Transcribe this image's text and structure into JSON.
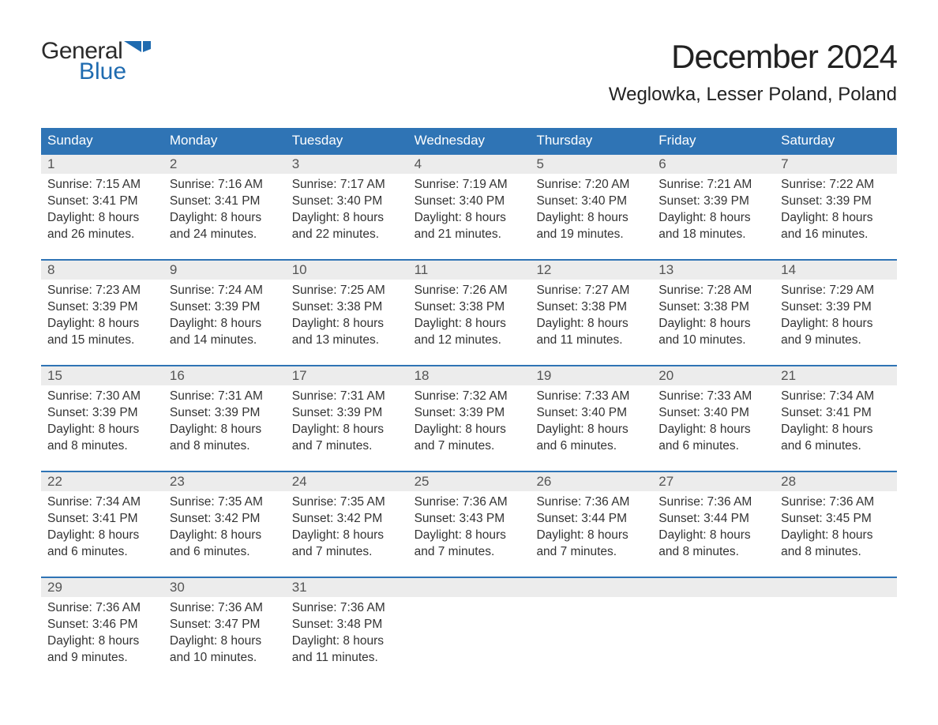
{
  "logo": {
    "word1": "General",
    "word2": "Blue",
    "text_color": "#2b2b2b",
    "accent_color": "#1f6bb0"
  },
  "title": "December 2024",
  "location": "Weglowka, Lesser Poland, Poland",
  "colors": {
    "header_bg": "#2f74b5",
    "header_text": "#ffffff",
    "daynum_bg": "#ececec",
    "week_border": "#2f74b5",
    "body_text": "#333333"
  },
  "fonts": {
    "title_size_pt": 32,
    "location_size_pt": 18,
    "header_size_pt": 13,
    "cell_size_pt": 12
  },
  "day_names": [
    "Sunday",
    "Monday",
    "Tuesday",
    "Wednesday",
    "Thursday",
    "Friday",
    "Saturday"
  ],
  "weeks": [
    [
      {
        "n": "1",
        "sr": "Sunrise: 7:15 AM",
        "ss": "Sunset: 3:41 PM",
        "d1": "Daylight: 8 hours",
        "d2": "and 26 minutes."
      },
      {
        "n": "2",
        "sr": "Sunrise: 7:16 AM",
        "ss": "Sunset: 3:41 PM",
        "d1": "Daylight: 8 hours",
        "d2": "and 24 minutes."
      },
      {
        "n": "3",
        "sr": "Sunrise: 7:17 AM",
        "ss": "Sunset: 3:40 PM",
        "d1": "Daylight: 8 hours",
        "d2": "and 22 minutes."
      },
      {
        "n": "4",
        "sr": "Sunrise: 7:19 AM",
        "ss": "Sunset: 3:40 PM",
        "d1": "Daylight: 8 hours",
        "d2": "and 21 minutes."
      },
      {
        "n": "5",
        "sr": "Sunrise: 7:20 AM",
        "ss": "Sunset: 3:40 PM",
        "d1": "Daylight: 8 hours",
        "d2": "and 19 minutes."
      },
      {
        "n": "6",
        "sr": "Sunrise: 7:21 AM",
        "ss": "Sunset: 3:39 PM",
        "d1": "Daylight: 8 hours",
        "d2": "and 18 minutes."
      },
      {
        "n": "7",
        "sr": "Sunrise: 7:22 AM",
        "ss": "Sunset: 3:39 PM",
        "d1": "Daylight: 8 hours",
        "d2": "and 16 minutes."
      }
    ],
    [
      {
        "n": "8",
        "sr": "Sunrise: 7:23 AM",
        "ss": "Sunset: 3:39 PM",
        "d1": "Daylight: 8 hours",
        "d2": "and 15 minutes."
      },
      {
        "n": "9",
        "sr": "Sunrise: 7:24 AM",
        "ss": "Sunset: 3:39 PM",
        "d1": "Daylight: 8 hours",
        "d2": "and 14 minutes."
      },
      {
        "n": "10",
        "sr": "Sunrise: 7:25 AM",
        "ss": "Sunset: 3:38 PM",
        "d1": "Daylight: 8 hours",
        "d2": "and 13 minutes."
      },
      {
        "n": "11",
        "sr": "Sunrise: 7:26 AM",
        "ss": "Sunset: 3:38 PM",
        "d1": "Daylight: 8 hours",
        "d2": "and 12 minutes."
      },
      {
        "n": "12",
        "sr": "Sunrise: 7:27 AM",
        "ss": "Sunset: 3:38 PM",
        "d1": "Daylight: 8 hours",
        "d2": "and 11 minutes."
      },
      {
        "n": "13",
        "sr": "Sunrise: 7:28 AM",
        "ss": "Sunset: 3:38 PM",
        "d1": "Daylight: 8 hours",
        "d2": "and 10 minutes."
      },
      {
        "n": "14",
        "sr": "Sunrise: 7:29 AM",
        "ss": "Sunset: 3:39 PM",
        "d1": "Daylight: 8 hours",
        "d2": "and 9 minutes."
      }
    ],
    [
      {
        "n": "15",
        "sr": "Sunrise: 7:30 AM",
        "ss": "Sunset: 3:39 PM",
        "d1": "Daylight: 8 hours",
        "d2": "and 8 minutes."
      },
      {
        "n": "16",
        "sr": "Sunrise: 7:31 AM",
        "ss": "Sunset: 3:39 PM",
        "d1": "Daylight: 8 hours",
        "d2": "and 8 minutes."
      },
      {
        "n": "17",
        "sr": "Sunrise: 7:31 AM",
        "ss": "Sunset: 3:39 PM",
        "d1": "Daylight: 8 hours",
        "d2": "and 7 minutes."
      },
      {
        "n": "18",
        "sr": "Sunrise: 7:32 AM",
        "ss": "Sunset: 3:39 PM",
        "d1": "Daylight: 8 hours",
        "d2": "and 7 minutes."
      },
      {
        "n": "19",
        "sr": "Sunrise: 7:33 AM",
        "ss": "Sunset: 3:40 PM",
        "d1": "Daylight: 8 hours",
        "d2": "and 6 minutes."
      },
      {
        "n": "20",
        "sr": "Sunrise: 7:33 AM",
        "ss": "Sunset: 3:40 PM",
        "d1": "Daylight: 8 hours",
        "d2": "and 6 minutes."
      },
      {
        "n": "21",
        "sr": "Sunrise: 7:34 AM",
        "ss": "Sunset: 3:41 PM",
        "d1": "Daylight: 8 hours",
        "d2": "and 6 minutes."
      }
    ],
    [
      {
        "n": "22",
        "sr": "Sunrise: 7:34 AM",
        "ss": "Sunset: 3:41 PM",
        "d1": "Daylight: 8 hours",
        "d2": "and 6 minutes."
      },
      {
        "n": "23",
        "sr": "Sunrise: 7:35 AM",
        "ss": "Sunset: 3:42 PM",
        "d1": "Daylight: 8 hours",
        "d2": "and 6 minutes."
      },
      {
        "n": "24",
        "sr": "Sunrise: 7:35 AM",
        "ss": "Sunset: 3:42 PM",
        "d1": "Daylight: 8 hours",
        "d2": "and 7 minutes."
      },
      {
        "n": "25",
        "sr": "Sunrise: 7:36 AM",
        "ss": "Sunset: 3:43 PM",
        "d1": "Daylight: 8 hours",
        "d2": "and 7 minutes."
      },
      {
        "n": "26",
        "sr": "Sunrise: 7:36 AM",
        "ss": "Sunset: 3:44 PM",
        "d1": "Daylight: 8 hours",
        "d2": "and 7 minutes."
      },
      {
        "n": "27",
        "sr": "Sunrise: 7:36 AM",
        "ss": "Sunset: 3:44 PM",
        "d1": "Daylight: 8 hours",
        "d2": "and 8 minutes."
      },
      {
        "n": "28",
        "sr": "Sunrise: 7:36 AM",
        "ss": "Sunset: 3:45 PM",
        "d1": "Daylight: 8 hours",
        "d2": "and 8 minutes."
      }
    ],
    [
      {
        "n": "29",
        "sr": "Sunrise: 7:36 AM",
        "ss": "Sunset: 3:46 PM",
        "d1": "Daylight: 8 hours",
        "d2": "and 9 minutes."
      },
      {
        "n": "30",
        "sr": "Sunrise: 7:36 AM",
        "ss": "Sunset: 3:47 PM",
        "d1": "Daylight: 8 hours",
        "d2": "and 10 minutes."
      },
      {
        "n": "31",
        "sr": "Sunrise: 7:36 AM",
        "ss": "Sunset: 3:48 PM",
        "d1": "Daylight: 8 hours",
        "d2": "and 11 minutes."
      },
      null,
      null,
      null,
      null
    ]
  ]
}
